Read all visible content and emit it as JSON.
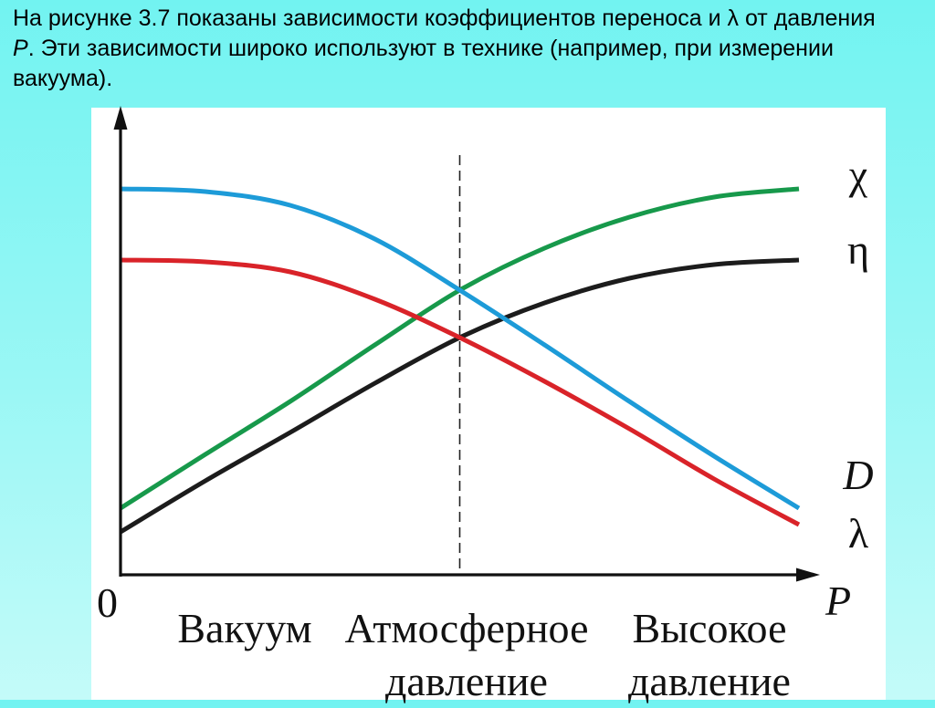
{
  "intro": {
    "line1": "На рисунке 3.7 показаны зависимости коэффициентов переноса и λ от давления",
    "line2_var": "P",
    "line2_rest": ". Эти зависимости широко используют в технике (например, при измерении",
    "line3": "вакуума)."
  },
  "chart_data": {
    "type": "line",
    "xlabel": "P",
    "ylabel": "",
    "origin_label": "0",
    "x_labels": [
      [
        "Вакуум"
      ],
      [
        "Атмосферное",
        "давление"
      ],
      [
        "Высокое",
        "давление"
      ]
    ],
    "xlim": [
      0,
      1
    ],
    "ylim": [
      0,
      1
    ],
    "vline_x": 0.5,
    "x": [
      0,
      0.125,
      0.25,
      0.375,
      0.5,
      0.625,
      0.75,
      0.875,
      1
    ],
    "series": [
      {
        "name": "χ",
        "color": "#17994b",
        "values": [
          0.146,
          0.264,
          0.38,
          0.504,
          0.624,
          0.716,
          0.784,
          0.828,
          0.846
        ]
      },
      {
        "name": "η",
        "color": "#1c1c1c",
        "values": [
          0.094,
          0.206,
          0.312,
          0.42,
          0.52,
          0.596,
          0.65,
          0.68,
          0.69
        ]
      },
      {
        "name": "D",
        "color": "#1d9bd8",
        "values": [
          0.846,
          0.84,
          0.81,
          0.736,
          0.624,
          0.504,
          0.38,
          0.26,
          0.146
        ]
      },
      {
        "name": "λ",
        "color": "#d92329",
        "values": [
          0.69,
          0.686,
          0.664,
          0.604,
          0.52,
          0.424,
          0.32,
          0.21,
          0.11
        ]
      }
    ]
  }
}
